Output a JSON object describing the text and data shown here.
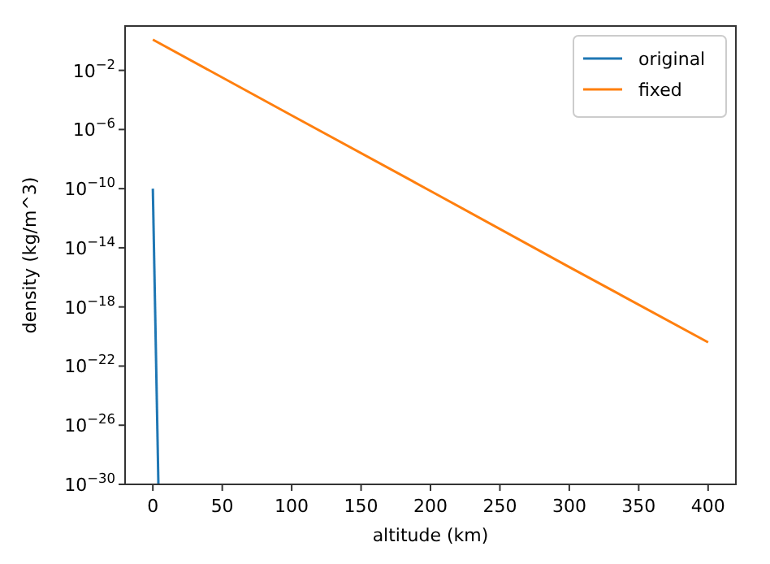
{
  "chart_data": {
    "type": "line",
    "xlabel": "altitude (km)",
    "ylabel": "density (kg/m^3)",
    "log": "y",
    "xlim": [
      -20,
      420
    ],
    "xticks": [
      0,
      50,
      100,
      150,
      200,
      250,
      300,
      350,
      400
    ],
    "ylim": [
      1e-30,
      10
    ],
    "yticks": [
      {
        "value": 0.01,
        "label": "10$^{−2}$"
      },
      {
        "value": 1e-06,
        "label": "10$^{−6}$"
      },
      {
        "value": 1e-10,
        "label": "10$^{−10}$"
      },
      {
        "value": 1e-14,
        "label": "10$^{−14}$"
      },
      {
        "value": 1e-18,
        "label": "10$^{−18}$"
      },
      {
        "value": 1e-22,
        "label": "10$^{−22}$"
      },
      {
        "value": 1e-26,
        "label": "10$^{−26}$"
      },
      {
        "value": 1e-30,
        "label": "10$^{−30}$"
      }
    ],
    "series": [
      {
        "name": "original",
        "color": "#1f77b4",
        "x": [
          0,
          4
        ],
        "values": [
          1e-10,
          1e-30
        ]
      },
      {
        "name": "fixed",
        "color": "#ff7f0e",
        "x": [
          0,
          100,
          200,
          300,
          400
        ],
        "values": [
          1.2,
          9e-06,
          7e-11,
          5e-16,
          4e-21
        ]
      }
    ],
    "legend": "top right",
    "grid": false
  }
}
